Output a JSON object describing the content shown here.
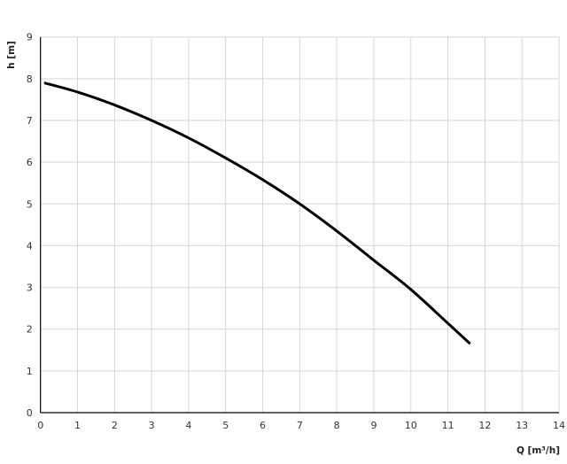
{
  "chart_data": {
    "type": "line",
    "title": "",
    "xlabel": "Q [m³/h]",
    "ylabel": "h [m]",
    "xlim": [
      0,
      14
    ],
    "ylim": [
      0,
      9
    ],
    "xticks": [
      "0",
      "1",
      "2",
      "3",
      "4",
      "5",
      "6",
      "7",
      "8",
      "9",
      "10",
      "11",
      "12",
      "13",
      "14"
    ],
    "yticks": [
      "0",
      "1",
      "2",
      "3",
      "4",
      "5",
      "6",
      "7",
      "8",
      "9"
    ],
    "grid": true,
    "series": [
      {
        "color": "#000000",
        "x": [
          0.1,
          1,
          2,
          3,
          4,
          5,
          6,
          7,
          8,
          9,
          10,
          11,
          11.6
        ],
        "y": [
          7.9,
          7.68,
          7.37,
          7.0,
          6.58,
          6.1,
          5.58,
          5.0,
          4.35,
          3.65,
          2.95,
          2.14,
          1.65
        ]
      }
    ]
  }
}
